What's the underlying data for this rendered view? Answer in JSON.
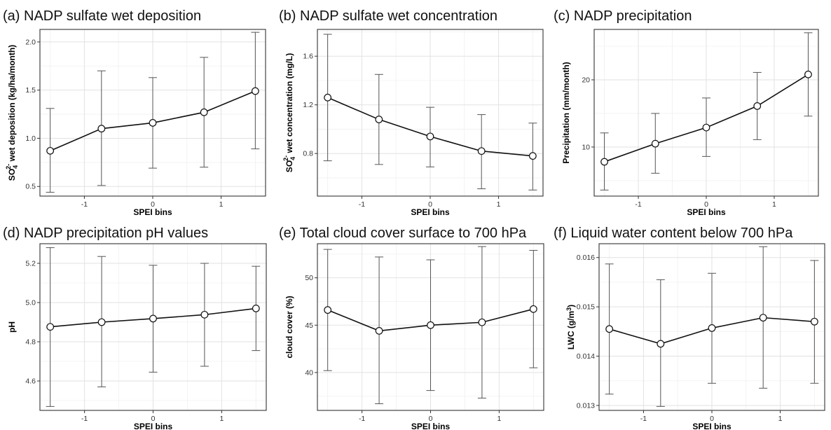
{
  "chart_data": [
    {
      "type": "line",
      "title": "(a) NADP sulfate wet deposition",
      "xlabel": "SPEI bins",
      "ylabel": {
        "main": "SO",
        "sub": "4",
        "sup": "2-",
        "rest": " wet deposition (kg/ha/month)"
      },
      "x": [
        -1.5,
        -0.75,
        0,
        0.75,
        1.5
      ],
      "values": [
        0.87,
        1.1,
        1.16,
        1.27,
        1.49
      ],
      "err_low": [
        0.44,
        0.51,
        0.69,
        0.7,
        0.89
      ],
      "err_high": [
        1.31,
        1.7,
        1.63,
        1.84,
        2.1
      ],
      "xlim": [
        -1.65,
        1.65
      ],
      "ylim": [
        0.4,
        2.13
      ],
      "xticks": [
        -1,
        0,
        1
      ],
      "yticks": [
        0.5,
        1.0,
        1.5,
        2.0
      ],
      "ytick_labels": [
        "0.5",
        "1.0",
        "1.5",
        "2.0"
      ],
      "grid": true
    },
    {
      "type": "line",
      "title": "(b) NADP sulfate wet concentration",
      "xlabel": "SPEI bins",
      "ylabel": {
        "main": "SO",
        "sub": "4",
        "sup": "2-",
        "rest": " wet concentration (mg/L)"
      },
      "x": [
        -1.5,
        -0.75,
        0,
        0.75,
        1.5
      ],
      "values": [
        1.26,
        1.08,
        0.94,
        0.82,
        0.78
      ],
      "err_low": [
        0.74,
        0.71,
        0.69,
        0.51,
        0.5
      ],
      "err_high": [
        1.78,
        1.45,
        1.18,
        1.12,
        1.05
      ],
      "xlim": [
        -1.65,
        1.65
      ],
      "ylim": [
        0.45,
        1.82
      ],
      "xticks": [
        -1,
        0,
        1
      ],
      "yticks": [
        0.8,
        1.2,
        1.6
      ],
      "ytick_labels": [
        "0.8",
        "1.2",
        "1.6"
      ],
      "grid": true
    },
    {
      "type": "line",
      "title": "(c) NADP precipitation",
      "xlabel": "SPEI bins",
      "ylabel": {
        "main": "Precipitation (mm/month)"
      },
      "x": [
        -1.5,
        -0.75,
        0,
        0.75,
        1.5
      ],
      "values": [
        7.8,
        10.5,
        12.9,
        16.1,
        20.8
      ],
      "err_low": [
        3.6,
        6.1,
        8.6,
        11.1,
        14.6
      ],
      "err_high": [
        12.1,
        15.0,
        17.3,
        21.1,
        27.0
      ],
      "xlim": [
        -1.65,
        1.65
      ],
      "ylim": [
        2.7,
        27.5
      ],
      "xticks": [
        -1,
        0,
        1
      ],
      "yticks": [
        10,
        20
      ],
      "ytick_labels": [
        "10",
        "20"
      ],
      "grid": true
    },
    {
      "type": "line",
      "title": "(d) NADP precipitation pH values",
      "xlabel": "SPEI bins",
      "ylabel": {
        "main": "pH"
      },
      "x": [
        -1.5,
        -0.75,
        0,
        0.75,
        1.5
      ],
      "values": [
        4.876,
        4.9,
        4.918,
        4.938,
        4.97
      ],
      "err_low": [
        4.47,
        4.57,
        4.645,
        4.675,
        4.755
      ],
      "err_high": [
        5.28,
        5.235,
        5.19,
        5.2,
        5.185
      ],
      "xlim": [
        -1.65,
        1.65
      ],
      "ylim": [
        4.45,
        5.3
      ],
      "xticks": [
        -1,
        0,
        1
      ],
      "yticks": [
        4.6,
        4.8,
        5.0,
        5.2
      ],
      "ytick_labels": [
        "4.6",
        "4.8",
        "5.0",
        "5.2"
      ],
      "grid": true
    },
    {
      "type": "line",
      "title": "(e) Total cloud cover surface to 700 hPa",
      "xlabel": "SPEI bins",
      "ylabel": {
        "main": "cloud cover (%)"
      },
      "x": [
        -1.5,
        -0.75,
        0,
        0.75,
        1.5
      ],
      "values": [
        46.6,
        44.4,
        45.0,
        45.3,
        46.7
      ],
      "err_low": [
        40.2,
        36.7,
        38.1,
        37.3,
        40.5
      ],
      "err_high": [
        53.0,
        52.2,
        51.9,
        53.3,
        52.9
      ],
      "xlim": [
        -1.65,
        1.65
      ],
      "ylim": [
        36.0,
        53.6
      ],
      "xticks": [
        -1,
        0,
        1
      ],
      "yticks": [
        40,
        45,
        50
      ],
      "ytick_labels": [
        "40",
        "45",
        "50"
      ],
      "grid": true
    },
    {
      "type": "line",
      "title": "(f) Liquid water content below 700 hPa",
      "xlabel": "SPEI bins",
      "ylabel": {
        "main": "LWC (g/m",
        "sup": "3",
        "rest": ")"
      },
      "x": [
        -1.5,
        -0.75,
        0,
        0.75,
        1.5
      ],
      "values": [
        0.01455,
        0.01425,
        0.01457,
        0.01478,
        0.0147
      ],
      "err_low": [
        0.01323,
        0.01298,
        0.01345,
        0.01335,
        0.01345
      ],
      "err_high": [
        0.01587,
        0.01555,
        0.01568,
        0.01622,
        0.01594
      ],
      "xlim": [
        -1.65,
        1.65
      ],
      "ylim": [
        0.0129,
        0.01628
      ],
      "xticks": [
        -1,
        0,
        1
      ],
      "yticks": [
        0.013,
        0.014,
        0.015,
        0.016
      ],
      "ytick_labels": [
        "0.013",
        "0.014",
        "0.015",
        "0.016"
      ],
      "grid": true
    }
  ]
}
